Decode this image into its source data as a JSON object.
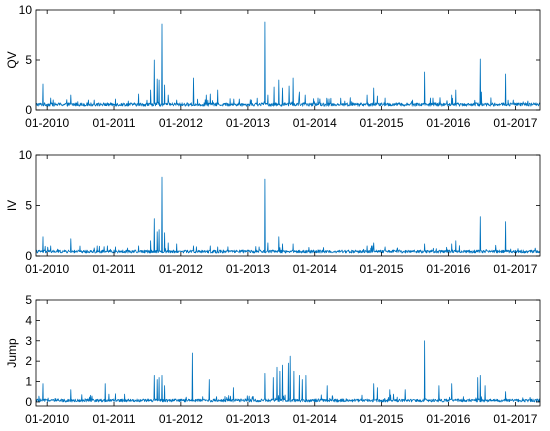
{
  "figure_colors": {
    "line": "#0072BD",
    "axis": "#000000",
    "background": "#ffffff"
  },
  "chart_data": [
    {
      "type": "line",
      "title": "",
      "xlabel": "",
      "ylabel": "QV",
      "xlim": [
        "2009-11-01",
        "2017-05-15"
      ],
      "ylim": [
        0,
        10
      ],
      "yticks": [
        0,
        5,
        10
      ],
      "xticks": [
        "01-2010",
        "01-2011",
        "01-2012",
        "01-2013",
        "01-2014",
        "01-2015",
        "01-2016",
        "01-2017"
      ],
      "grid": false,
      "series": [
        {
          "color": "#0072BD",
          "baseline": 0.5,
          "noise": 0.35,
          "spikes": [
            [
              "2009-12-10",
              2.6
            ],
            [
              "2010-01-20",
              1.2
            ],
            [
              "2010-05-10",
              1.5
            ],
            [
              "2010-09-15",
              1.0
            ],
            [
              "2011-01-10",
              1.1
            ],
            [
              "2011-03-20",
              0.9
            ],
            [
              "2011-05-15",
              1.6
            ],
            [
              "2011-07-20",
              2.0
            ],
            [
              "2011-08-10",
              5.0
            ],
            [
              "2011-08-25",
              3.1
            ],
            [
              "2011-09-05",
              3.0
            ],
            [
              "2011-09-20",
              8.6
            ],
            [
              "2011-10-05",
              2.5
            ],
            [
              "2011-10-25",
              1.5
            ],
            [
              "2011-12-10",
              1.0
            ],
            [
              "2012-03-10",
              3.2
            ],
            [
              "2012-05-20",
              1.5
            ],
            [
              "2012-06-10",
              1.6
            ],
            [
              "2012-07-20",
              2.0
            ],
            [
              "2012-11-15",
              1.1
            ],
            [
              "2013-01-20",
              1.0
            ],
            [
              "2013-04-05",
              8.8
            ],
            [
              "2013-04-20",
              1.5
            ],
            [
              "2013-05-25",
              2.3
            ],
            [
              "2013-06-20",
              3.0
            ],
            [
              "2013-07-10",
              2.2
            ],
            [
              "2013-08-15",
              2.4
            ],
            [
              "2013-09-05",
              3.2
            ],
            [
              "2013-10-10",
              1.8
            ],
            [
              "2013-11-10",
              1.5
            ],
            [
              "2014-01-20",
              1.2
            ],
            [
              "2014-03-10",
              1.0
            ],
            [
              "2014-06-15",
              0.9
            ],
            [
              "2014-10-15",
              1.5
            ],
            [
              "2014-11-20",
              2.2
            ],
            [
              "2014-12-10",
              1.4
            ],
            [
              "2015-01-20",
              1.2
            ],
            [
              "2015-06-20",
              1.0
            ],
            [
              "2015-08-24",
              3.8
            ],
            [
              "2015-10-10",
              1.2
            ],
            [
              "2016-01-20",
              1.5
            ],
            [
              "2016-02-10",
              2.0
            ],
            [
              "2016-06-24",
              5.1
            ],
            [
              "2016-06-30",
              1.8
            ],
            [
              "2016-11-09",
              3.6
            ],
            [
              "2016-12-20",
              1.0
            ],
            [
              "2017-03-10",
              0.9
            ]
          ]
        }
      ]
    },
    {
      "type": "line",
      "title": "",
      "xlabel": "",
      "ylabel": "IV",
      "xlim": [
        "2009-11-01",
        "2017-05-15"
      ],
      "ylim": [
        0,
        10
      ],
      "yticks": [
        0,
        5,
        10
      ],
      "xticks": [
        "01-2010",
        "01-2011",
        "01-2012",
        "01-2013",
        "01-2014",
        "01-2015",
        "01-2016",
        "01-2017"
      ],
      "grid": false,
      "series": [
        {
          "color": "#0072BD",
          "baseline": 0.4,
          "noise": 0.3,
          "spikes": [
            [
              "2009-12-10",
              1.9
            ],
            [
              "2010-01-20",
              1.0
            ],
            [
              "2010-05-10",
              1.7
            ],
            [
              "2010-09-15",
              0.8
            ],
            [
              "2011-01-10",
              0.9
            ],
            [
              "2011-05-15",
              1.0
            ],
            [
              "2011-07-20",
              1.5
            ],
            [
              "2011-08-10",
              3.7
            ],
            [
              "2011-08-25",
              2.4
            ],
            [
              "2011-09-05",
              2.6
            ],
            [
              "2011-09-20",
              7.8
            ],
            [
              "2011-10-05",
              2.3
            ],
            [
              "2011-10-25",
              1.3
            ],
            [
              "2011-12-10",
              1.2
            ],
            [
              "2012-03-10",
              1.0
            ],
            [
              "2012-06-10",
              1.0
            ],
            [
              "2012-07-20",
              0.9
            ],
            [
              "2013-04-05",
              7.6
            ],
            [
              "2013-04-20",
              1.3
            ],
            [
              "2013-06-20",
              1.9
            ],
            [
              "2013-07-10",
              1.2
            ],
            [
              "2013-09-05",
              1.2
            ],
            [
              "2014-10-15",
              1.0
            ],
            [
              "2014-11-20",
              1.3
            ],
            [
              "2015-01-20",
              0.9
            ],
            [
              "2015-08-24",
              1.2
            ],
            [
              "2016-01-20",
              1.2
            ],
            [
              "2016-02-10",
              1.5
            ],
            [
              "2016-06-24",
              3.9
            ],
            [
              "2016-11-09",
              3.4
            ]
          ]
        }
      ]
    },
    {
      "type": "line",
      "title": "",
      "xlabel": "",
      "ylabel": "Jump",
      "xlim": [
        "2009-11-01",
        "2017-05-15"
      ],
      "ylim": [
        -0.2,
        5
      ],
      "yticks": [
        0,
        1,
        2,
        3,
        4,
        5
      ],
      "xticks": [
        "01-2010",
        "01-2011",
        "01-2012",
        "01-2013",
        "01-2014",
        "01-2015",
        "01-2016",
        "01-2017"
      ],
      "grid": false,
      "series": [
        {
          "color": "#0072BD",
          "baseline": 0.05,
          "noise": 0.15,
          "spikes": [
            [
              "2009-12-10",
              0.9
            ],
            [
              "2010-05-10",
              0.6
            ],
            [
              "2010-11-15",
              0.9
            ],
            [
              "2011-01-10",
              0.4
            ],
            [
              "2011-08-10",
              1.3
            ],
            [
              "2011-08-25",
              1.1
            ],
            [
              "2011-09-05",
              1.2
            ],
            [
              "2011-09-20",
              1.3
            ],
            [
              "2011-10-05",
              0.8
            ],
            [
              "2012-03-05",
              2.4
            ],
            [
              "2012-06-05",
              1.1
            ],
            [
              "2012-10-15",
              0.7
            ],
            [
              "2013-04-05",
              1.4
            ],
            [
              "2013-05-20",
              1.2
            ],
            [
              "2013-06-10",
              1.7
            ],
            [
              "2013-06-25",
              1.5
            ],
            [
              "2013-07-10",
              1.8
            ],
            [
              "2013-08-10",
              1.9
            ],
            [
              "2013-08-20",
              2.25
            ],
            [
              "2013-09-10",
              1.5
            ],
            [
              "2013-10-10",
              1.3
            ],
            [
              "2013-10-25",
              1.1
            ],
            [
              "2013-11-15",
              1.3
            ],
            [
              "2014-03-10",
              0.8
            ],
            [
              "2014-11-20",
              0.9
            ],
            [
              "2014-12-10",
              0.7
            ],
            [
              "2015-02-15",
              0.6
            ],
            [
              "2015-05-10",
              0.6
            ],
            [
              "2015-08-24",
              3.0
            ],
            [
              "2015-11-10",
              0.8
            ],
            [
              "2016-01-20",
              0.9
            ],
            [
              "2016-06-10",
              1.2
            ],
            [
              "2016-06-24",
              1.3
            ],
            [
              "2016-07-20",
              0.8
            ],
            [
              "2016-11-09",
              0.5
            ],
            [
              "2017-02-10",
              0.2
            ]
          ]
        }
      ]
    }
  ]
}
